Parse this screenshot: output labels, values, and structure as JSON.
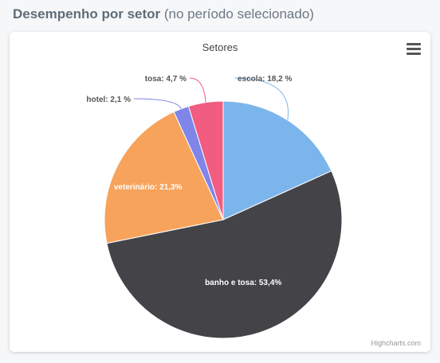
{
  "header": {
    "title_bold": "Desempenho por setor",
    "title_rest": "(no período selecionado)"
  },
  "chart_data": {
    "type": "pie",
    "title": "Setores",
    "slices": [
      {
        "name": "escola",
        "value": 18.2,
        "label": "escola: 18,2 %",
        "color": "#7cb5ec",
        "label_inside": false
      },
      {
        "name": "banho e tosa",
        "value": 53.4,
        "label": "banho e tosa: 53,4%",
        "color": "#434348",
        "label_inside": true
      },
      {
        "name": "veterinário",
        "value": 21.3,
        "label": "veterinário: 21,3%",
        "color": "#f7a35c",
        "label_inside": true
      },
      {
        "name": "hotel",
        "value": 2.1,
        "label": "hotel: 2,1 %",
        "color": "#8085e9",
        "label_inside": false
      },
      {
        "name": "tosa",
        "value": 4.7,
        "label": "tosa: 4,7 %",
        "color": "#f15c80",
        "label_inside": false
      }
    ]
  },
  "toolbar": {
    "menu_icon": "hamburger-menu-icon"
  },
  "credits": "Highcharts.com"
}
